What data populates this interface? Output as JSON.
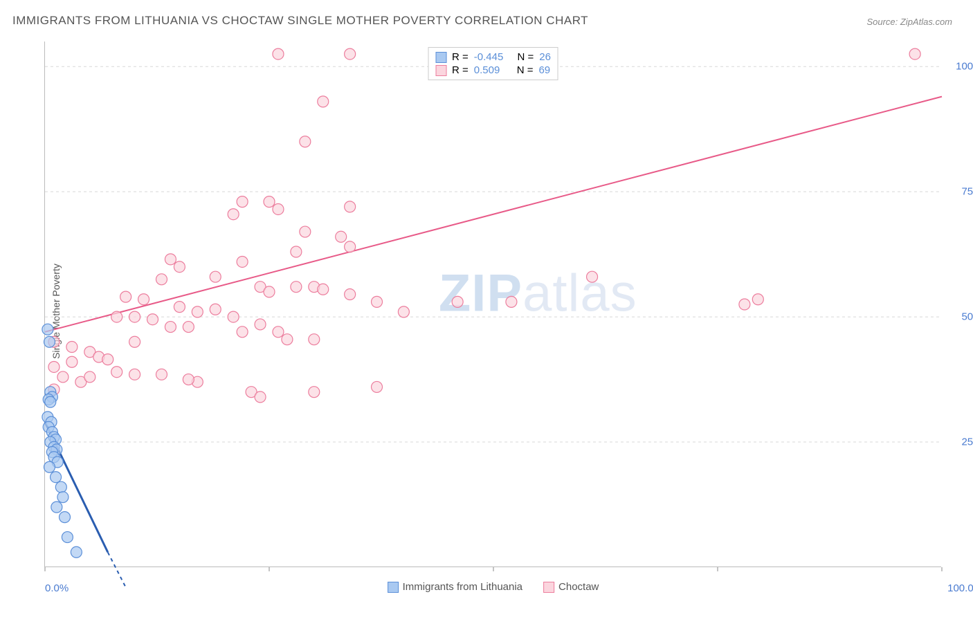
{
  "title": "IMMIGRANTS FROM LITHUANIA VS CHOCTAW SINGLE MOTHER POVERTY CORRELATION CHART",
  "source": "Source: ZipAtlas.com",
  "watermark_zip": "ZIP",
  "watermark_atlas": "atlas",
  "ylabel": "Single Mother Poverty",
  "chart": {
    "type": "scatter",
    "xlim": [
      0,
      100
    ],
    "ylim": [
      0,
      105
    ],
    "ytick_labels": [
      "25.0%",
      "50.0%",
      "75.0%",
      "100.0%"
    ],
    "ytick_values": [
      25,
      50,
      75,
      100
    ],
    "xtick_left": "0.0%",
    "xtick_right": "100.0%",
    "xtick_mid_values": [
      25,
      50,
      75
    ],
    "grid_color": "#d8d8d8",
    "grid_dash": "4,4",
    "background_color": "#ffffff",
    "watermark_color": "#e2e9f4"
  },
  "series_a": {
    "label": "Immigrants from Lithuania",
    "fill": "#a9c9f1",
    "stroke": "#5b8fd8",
    "line_color": "#2a5db0",
    "R": "-0.445",
    "N": "26",
    "trend": {
      "x1": 0,
      "y1": 29,
      "x2": 7,
      "y2": 3,
      "dash_x2": 9,
      "dash_y2": -4
    },
    "points": [
      [
        0.3,
        47.5
      ],
      [
        0.5,
        45
      ],
      [
        0.6,
        35
      ],
      [
        0.8,
        34
      ],
      [
        0.4,
        33.5
      ],
      [
        0.6,
        33
      ],
      [
        0.3,
        30
      ],
      [
        0.7,
        29
      ],
      [
        0.4,
        28
      ],
      [
        0.8,
        27
      ],
      [
        1.0,
        26
      ],
      [
        1.2,
        25.5
      ],
      [
        0.6,
        25
      ],
      [
        1.0,
        24
      ],
      [
        1.3,
        23.5
      ],
      [
        0.8,
        23
      ],
      [
        1.0,
        22
      ],
      [
        1.4,
        21
      ],
      [
        0.5,
        20
      ],
      [
        1.2,
        18
      ],
      [
        1.8,
        16
      ],
      [
        2.0,
        14
      ],
      [
        1.3,
        12
      ],
      [
        2.2,
        10
      ],
      [
        2.5,
        6
      ],
      [
        3.5,
        3
      ]
    ]
  },
  "series_b": {
    "label": "Choctaw",
    "fill": "#fbd5de",
    "stroke": "#ec7d9d",
    "line_color": "#e85a88",
    "R": "0.509",
    "N": "69",
    "trend": {
      "x1": 0,
      "y1": 47,
      "x2": 100,
      "y2": 94
    },
    "points": [
      [
        26,
        102.5
      ],
      [
        34,
        102.5
      ],
      [
        97,
        102.5
      ],
      [
        31,
        93
      ],
      [
        29,
        85
      ],
      [
        22,
        73
      ],
      [
        25,
        73
      ],
      [
        26,
        71.5
      ],
      [
        21,
        70.5
      ],
      [
        34,
        72
      ],
      [
        29,
        67
      ],
      [
        33,
        66
      ],
      [
        34,
        64
      ],
      [
        28,
        63
      ],
      [
        14,
        61.5
      ],
      [
        22,
        61
      ],
      [
        15,
        60
      ],
      [
        19,
        58
      ],
      [
        13,
        57.5
      ],
      [
        24,
        56
      ],
      [
        25,
        55
      ],
      [
        28,
        56
      ],
      [
        30,
        56
      ],
      [
        31,
        55.5
      ],
      [
        34,
        54.5
      ],
      [
        46,
        53
      ],
      [
        37,
        53
      ],
      [
        52,
        53
      ],
      [
        78,
        52.5
      ],
      [
        79.5,
        53.5
      ],
      [
        61,
        58
      ],
      [
        9,
        54
      ],
      [
        11,
        53.5
      ],
      [
        15,
        52
      ],
      [
        17,
        51
      ],
      [
        19,
        51.5
      ],
      [
        40,
        51
      ],
      [
        8,
        50
      ],
      [
        10,
        50
      ],
      [
        12,
        49.5
      ],
      [
        14,
        48
      ],
      [
        16,
        48
      ],
      [
        21,
        50
      ],
      [
        24,
        48.5
      ],
      [
        26,
        47
      ],
      [
        27,
        45.5
      ],
      [
        30,
        45.5
      ],
      [
        22,
        47
      ],
      [
        1,
        45
      ],
      [
        3,
        44
      ],
      [
        5,
        43
      ],
      [
        6,
        42
      ],
      [
        10,
        45
      ],
      [
        7,
        41.5
      ],
      [
        1,
        40
      ],
      [
        3,
        41
      ],
      [
        8,
        39
      ],
      [
        2,
        38
      ],
      [
        4,
        37
      ],
      [
        5,
        38
      ],
      [
        10,
        38.5
      ],
      [
        13,
        38.5
      ],
      [
        17,
        37
      ],
      [
        16,
        37.5
      ],
      [
        1,
        35.5
      ],
      [
        23,
        35
      ],
      [
        24,
        34
      ],
      [
        30,
        35
      ],
      [
        37,
        36
      ]
    ]
  },
  "legend_top": {
    "r_label": "R =",
    "n_label": "N ="
  }
}
